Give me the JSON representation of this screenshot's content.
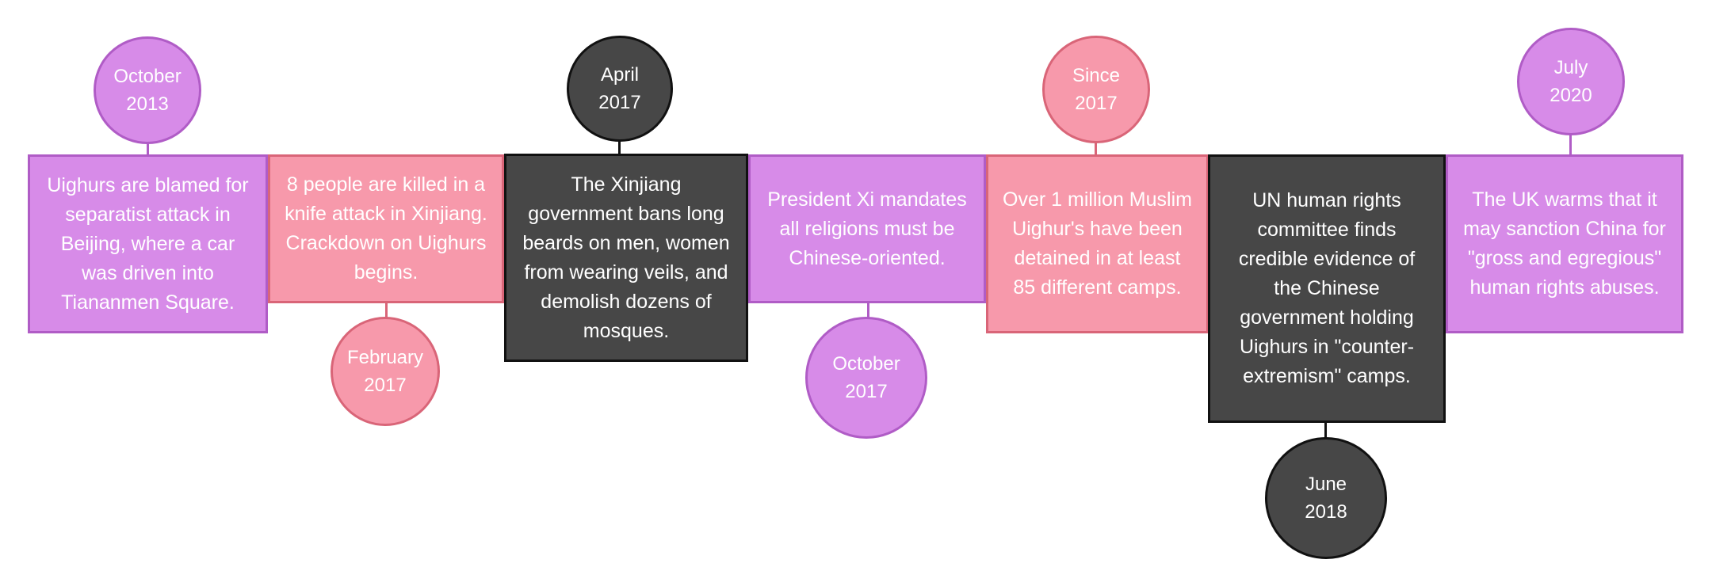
{
  "events": [
    {
      "date_line1": "October",
      "date_line2": "2013",
      "text": "Uighurs are blamed for separatist attack in Beijing, where a car was driven into Tiananmen Square.",
      "color": "#d78be8"
    },
    {
      "date_line1": "February",
      "date_line2": "2017",
      "text": "8 people are killed in a knife attack in Xinjiang. Crackdown on Uighurs begins.",
      "color": "#f799ab"
    },
    {
      "date_line1": "April",
      "date_line2": "2017",
      "text": "The Xinjiang government bans long beards on men, women from wearing veils, and demolish dozens of mosques.",
      "color": "#474747"
    },
    {
      "date_line1": "October",
      "date_line2": "2017",
      "text": "President Xi mandates all religions must be Chinese-oriented.",
      "color": "#d78be8"
    },
    {
      "date_line1": "Since",
      "date_line2": "2017",
      "text": "Over 1 million Muslim Uighur's have been detained in at least 85 different camps.",
      "color": "#f799ab"
    },
    {
      "date_line1": "June",
      "date_line2": "2018",
      "text": "UN human rights committee finds credible evidence of the Chinese government holding Uighurs in \"counter-extremism\" camps.",
      "color": "#474747"
    },
    {
      "date_line1": "July",
      "date_line2": "2020",
      "text": "The UK warms that it may sanction China for \"gross and egregious\" human rights abuses.",
      "color": "#d78be8"
    }
  ]
}
